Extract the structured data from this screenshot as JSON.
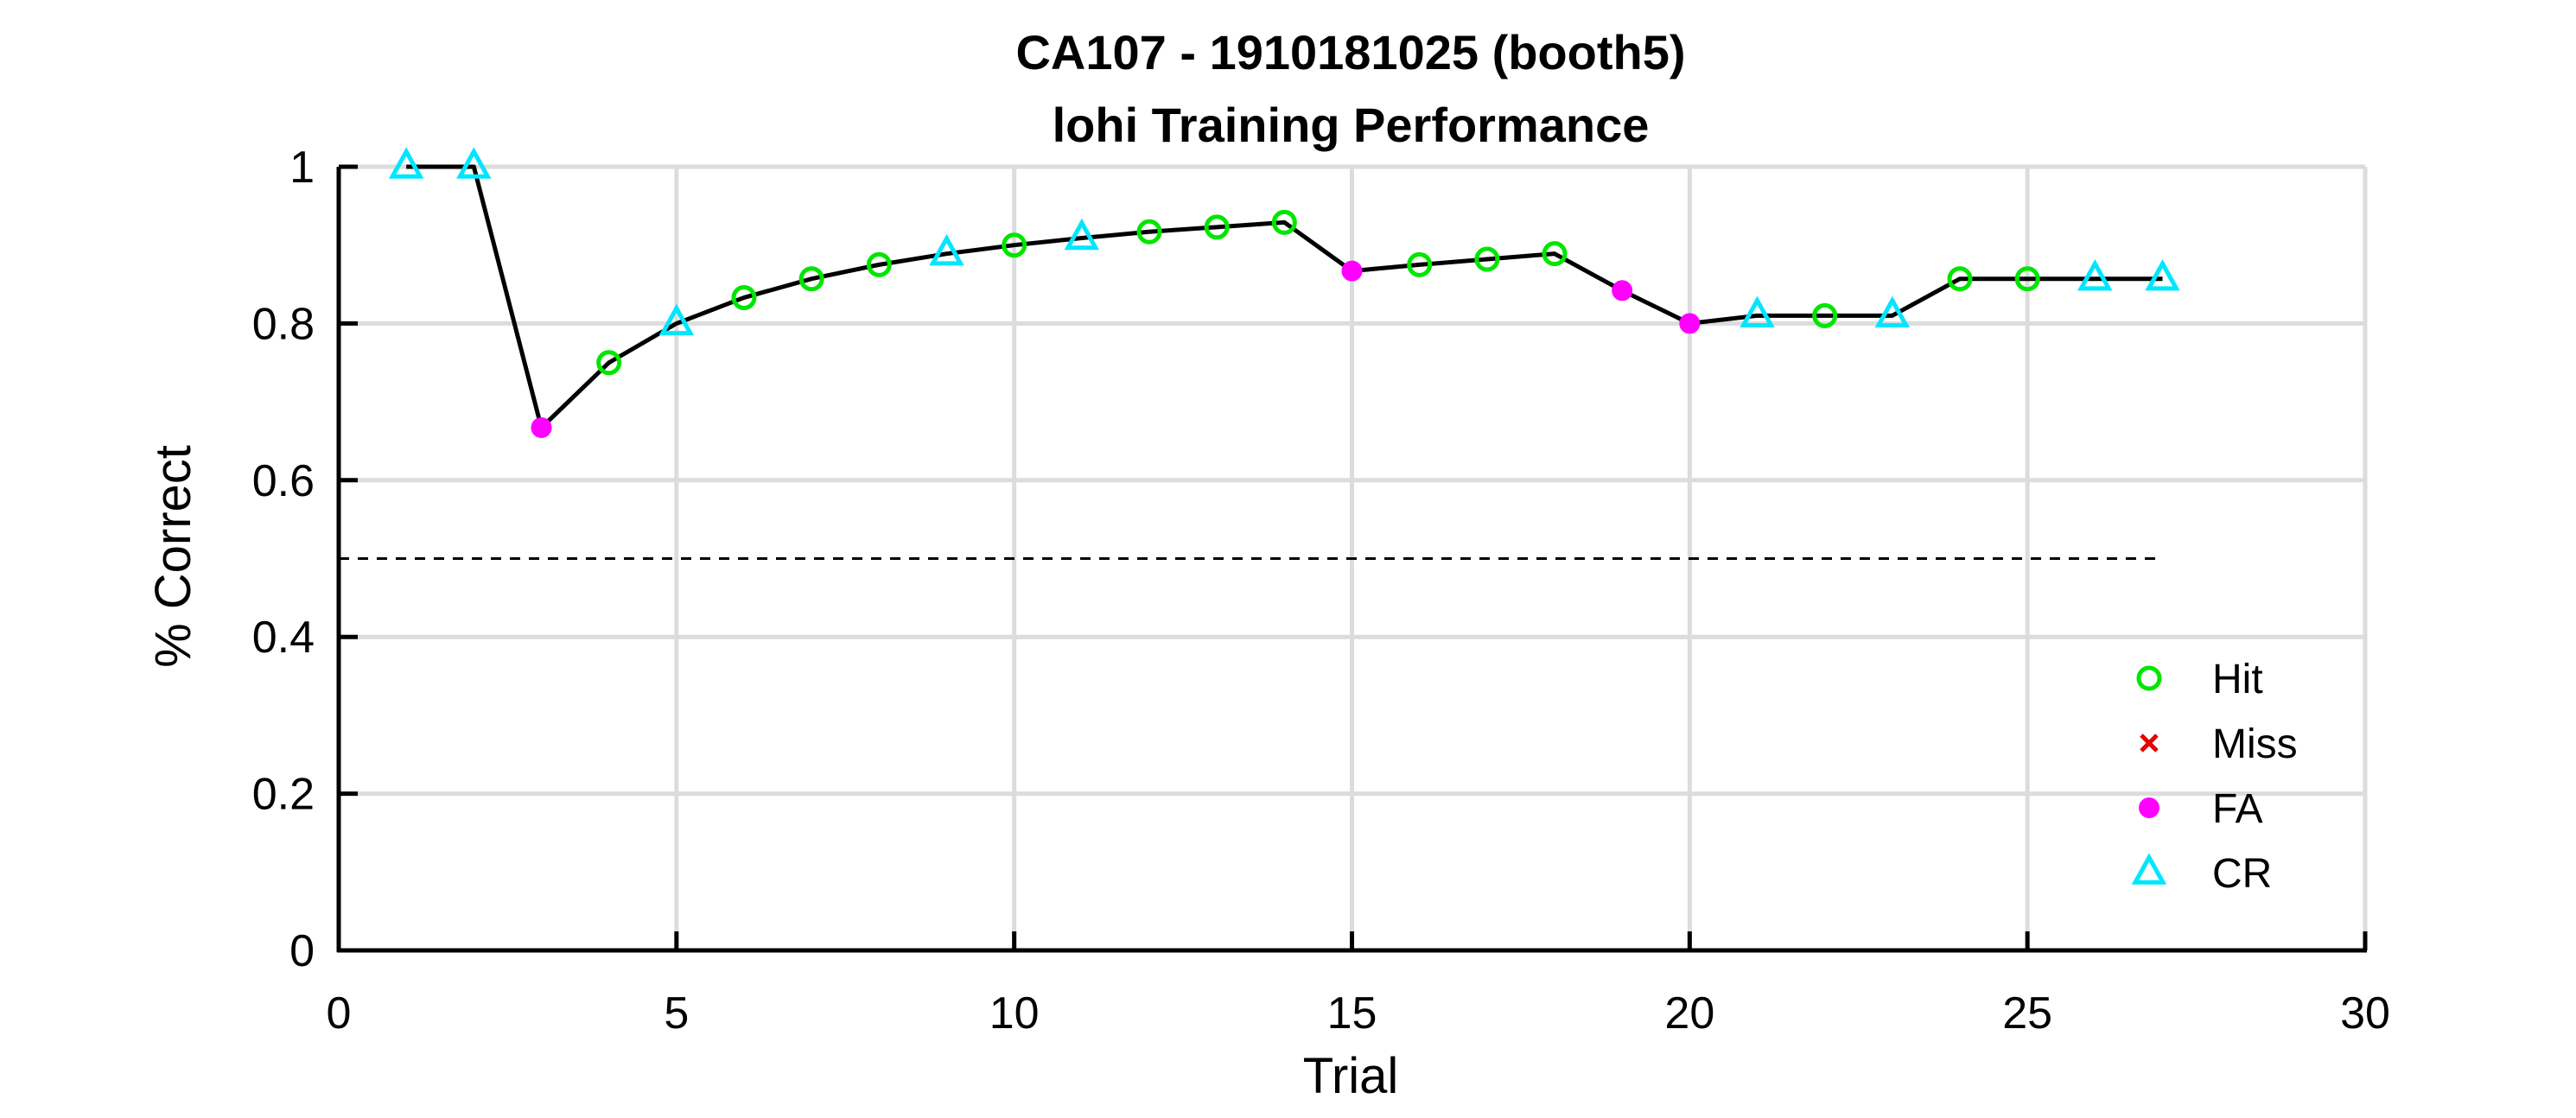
{
  "chart_data": {
    "type": "line",
    "title": "CA107 - 1910181025 (booth5)",
    "subtitle": "lohi Training Performance",
    "xlabel": "Trial",
    "ylabel": "% Correct",
    "xlim": [
      0,
      30
    ],
    "ylim": [
      0,
      1
    ],
    "xticks": [
      0,
      5,
      10,
      15,
      20,
      25,
      30
    ],
    "xtick_labels": [
      "0",
      "5",
      "10",
      "15",
      "20",
      "25",
      "30"
    ],
    "yticks": [
      0,
      0.2,
      0.4,
      0.6,
      0.8,
      1
    ],
    "ytick_labels": [
      "0",
      "0.2",
      "0.4",
      "0.6",
      "0.8",
      "1"
    ],
    "grid": true,
    "legend_position": "lower-right",
    "reference_line": {
      "y": 0.5,
      "x_range": [
        0,
        27
      ],
      "style": "dashed"
    },
    "x": [
      1,
      2,
      3,
      4,
      5,
      6,
      7,
      8,
      9,
      10,
      11,
      12,
      13,
      14,
      15,
      16,
      17,
      18,
      19,
      20,
      21,
      22,
      23,
      24,
      25,
      26,
      27
    ],
    "y": [
      1.0,
      1.0,
      0.667,
      0.75,
      0.8,
      0.833,
      0.857,
      0.875,
      0.889,
      0.9,
      0.909,
      0.917,
      0.923,
      0.929,
      0.867,
      0.875,
      0.882,
      0.889,
      0.842,
      0.8,
      0.81,
      0.81,
      0.81,
      0.857,
      0.857,
      0.857,
      0.857
    ],
    "outcomes": [
      "CR",
      "CR",
      "FA",
      "Hit",
      "CR",
      "Hit",
      "Hit",
      "Hit",
      "CR",
      "Hit",
      "CR",
      "Hit",
      "Hit",
      "Hit",
      "FA",
      "Hit",
      "Hit",
      "Hit",
      "FA",
      "FA",
      "CR",
      "Hit",
      "CR",
      "Hit",
      "Hit",
      "CR",
      "CR"
    ],
    "legend": [
      {
        "key": "Hit",
        "label": "Hit",
        "marker": "circle-open",
        "color": "#00e600"
      },
      {
        "key": "Miss",
        "label": "Miss",
        "marker": "x",
        "color": "#e60000"
      },
      {
        "key": "FA",
        "label": "FA",
        "marker": "dot-filled",
        "color": "#ff00ff"
      },
      {
        "key": "CR",
        "label": "CR",
        "marker": "triangle-open",
        "color": "#00e6ff"
      }
    ],
    "line_color": "#000000",
    "grid_color": "#dcdcdc"
  }
}
